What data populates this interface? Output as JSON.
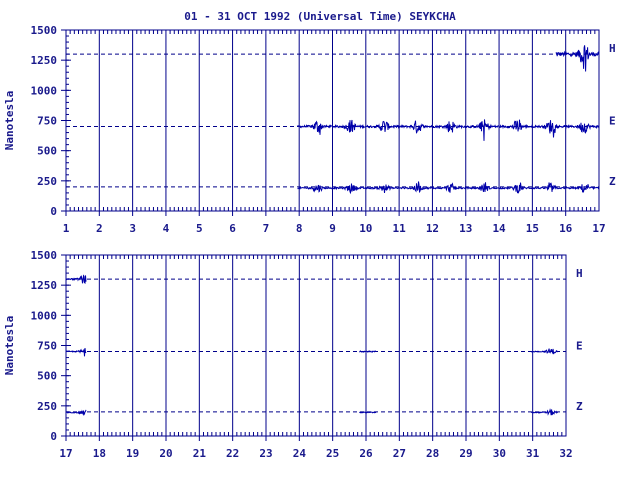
{
  "title": "01 - 31 OCT 1992 (Universal Time) SEYKCHA",
  "colors": {
    "axis": "#00008b",
    "trace": "#0000aa",
    "text": "#1a1a8c",
    "background": "#ffffff"
  },
  "chart_data": [
    {
      "type": "line",
      "xlim": [
        1,
        17
      ],
      "ylim": [
        0,
        1500
      ],
      "ylabel": "Nanotesla",
      "x_ticks": [
        "1",
        "2",
        "3",
        "4",
        "5",
        "6",
        "7",
        "8",
        "9",
        "10",
        "11",
        "12",
        "13",
        "14",
        "15",
        "16",
        "17"
      ],
      "y_ticks": [
        "0",
        "250",
        "500",
        "750",
        "1000",
        "1250",
        "1500"
      ],
      "grid": "vertical day lines",
      "baselines": [
        {
          "name": "H",
          "value": 1300
        },
        {
          "name": "E",
          "value": 700
        },
        {
          "name": "Z",
          "value": 200
        }
      ],
      "series": [
        {
          "name": "H",
          "segments": [
            [
              15.7,
              17.0
            ]
          ],
          "base": 1300,
          "amplitude": 120
        },
        {
          "name": "E",
          "segments": [
            [
              7.95,
              17.0
            ]
          ],
          "base": 700,
          "amplitude": 60
        },
        {
          "name": "Z",
          "segments": [
            [
              7.95,
              17.0
            ]
          ],
          "base": 190,
          "amplitude": 40
        }
      ]
    },
    {
      "type": "line",
      "xlim": [
        17,
        32
      ],
      "ylim": [
        0,
        1500
      ],
      "ylabel": "Nanotesla",
      "x_ticks": [
        "17",
        "18",
        "19",
        "20",
        "21",
        "22",
        "23",
        "24",
        "25",
        "26",
        "27",
        "28",
        "29",
        "30",
        "31",
        "32"
      ],
      "y_ticks": [
        "0",
        "250",
        "500",
        "750",
        "1000",
        "1250",
        "1500"
      ],
      "grid": "vertical day lines",
      "baselines": [
        {
          "name": "H",
          "value": 1300
        },
        {
          "name": "E",
          "value": 700
        },
        {
          "name": "Z",
          "value": 200
        }
      ],
      "series": [
        {
          "name": "H",
          "segments": [
            [
              17.0,
              17.6
            ]
          ],
          "base": 1300,
          "amplitude": 40
        },
        {
          "name": "E",
          "segments": [
            [
              17.0,
              17.6
            ],
            [
              25.8,
              26.3
            ],
            [
              30.95,
              31.75
            ]
          ],
          "base": 700,
          "amplitude": 30
        },
        {
          "name": "Z",
          "segments": [
            [
              17.0,
              17.6
            ],
            [
              25.8,
              26.3
            ],
            [
              30.95,
              31.75
            ]
          ],
          "base": 195,
          "amplitude": 25
        }
      ]
    }
  ]
}
